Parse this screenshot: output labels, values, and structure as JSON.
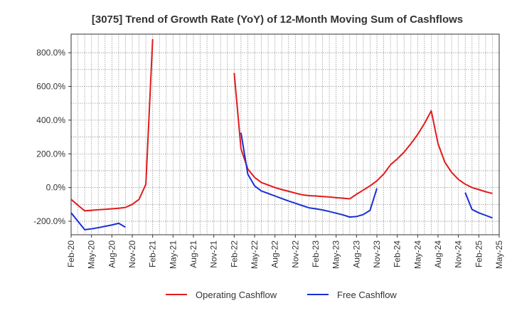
{
  "chart_data": {
    "type": "line",
    "title": "[3075]  Trend of Growth Rate (YoY) of 12-Month Moving Sum of Cashflows",
    "xlabel": "",
    "ylabel": "",
    "ylim": [
      -280,
      910
    ],
    "y_ticks": [
      -200,
      0,
      200,
      400,
      600,
      800
    ],
    "y_tick_labels": [
      "-200.0%",
      "0.0%",
      "200.0%",
      "400.0%",
      "600.0%",
      "800.0%"
    ],
    "x_tick_labels": [
      "Feb-20",
      "May-20",
      "Aug-20",
      "Nov-20",
      "Feb-21",
      "May-21",
      "Aug-21",
      "Nov-21",
      "Feb-22",
      "May-22",
      "Aug-22",
      "Nov-22",
      "Feb-23",
      "May-23",
      "Aug-23",
      "Nov-23",
      "Feb-24",
      "May-24",
      "Aug-24",
      "Nov-24",
      "Feb-25",
      "May-25"
    ],
    "grid": true,
    "legend_position": "bottom",
    "series": [
      {
        "name": "Operating Cashflow",
        "color": "#e31a1c",
        "values": [
          -70,
          -105,
          -138,
          -135,
          -132,
          -129,
          -126,
          -123,
          -118,
          -100,
          -70,
          20,
          880,
          null,
          null,
          null,
          null,
          null,
          null,
          null,
          null,
          null,
          null,
          null,
          680,
          230,
          110,
          60,
          30,
          15,
          0,
          -12,
          -22,
          -33,
          -43,
          -48,
          -50,
          -53,
          -56,
          -60,
          -63,
          -67,
          -40,
          -15,
          10,
          40,
          80,
          135,
          170,
          210,
          260,
          315,
          380,
          455,
          260,
          150,
          90,
          48,
          20,
          0,
          -12,
          -25,
          -35
        ]
      },
      {
        "name": "Free Cashflow",
        "color": "#1a2fd6",
        "values": [
          -150,
          -200,
          -250,
          -245,
          -238,
          -230,
          -222,
          -212,
          -235,
          null,
          null,
          null,
          null,
          null,
          null,
          null,
          null,
          null,
          null,
          null,
          null,
          null,
          null,
          null,
          null,
          325,
          80,
          10,
          -20,
          -35,
          -50,
          -65,
          -80,
          -93,
          -107,
          -120,
          -126,
          -133,
          -142,
          -152,
          -162,
          -175,
          -172,
          -160,
          -135,
          -5,
          null,
          null,
          null,
          null,
          null,
          null,
          null,
          null,
          null,
          null,
          null,
          null,
          -30,
          -130,
          -150,
          -165,
          -180
        ]
      }
    ]
  }
}
